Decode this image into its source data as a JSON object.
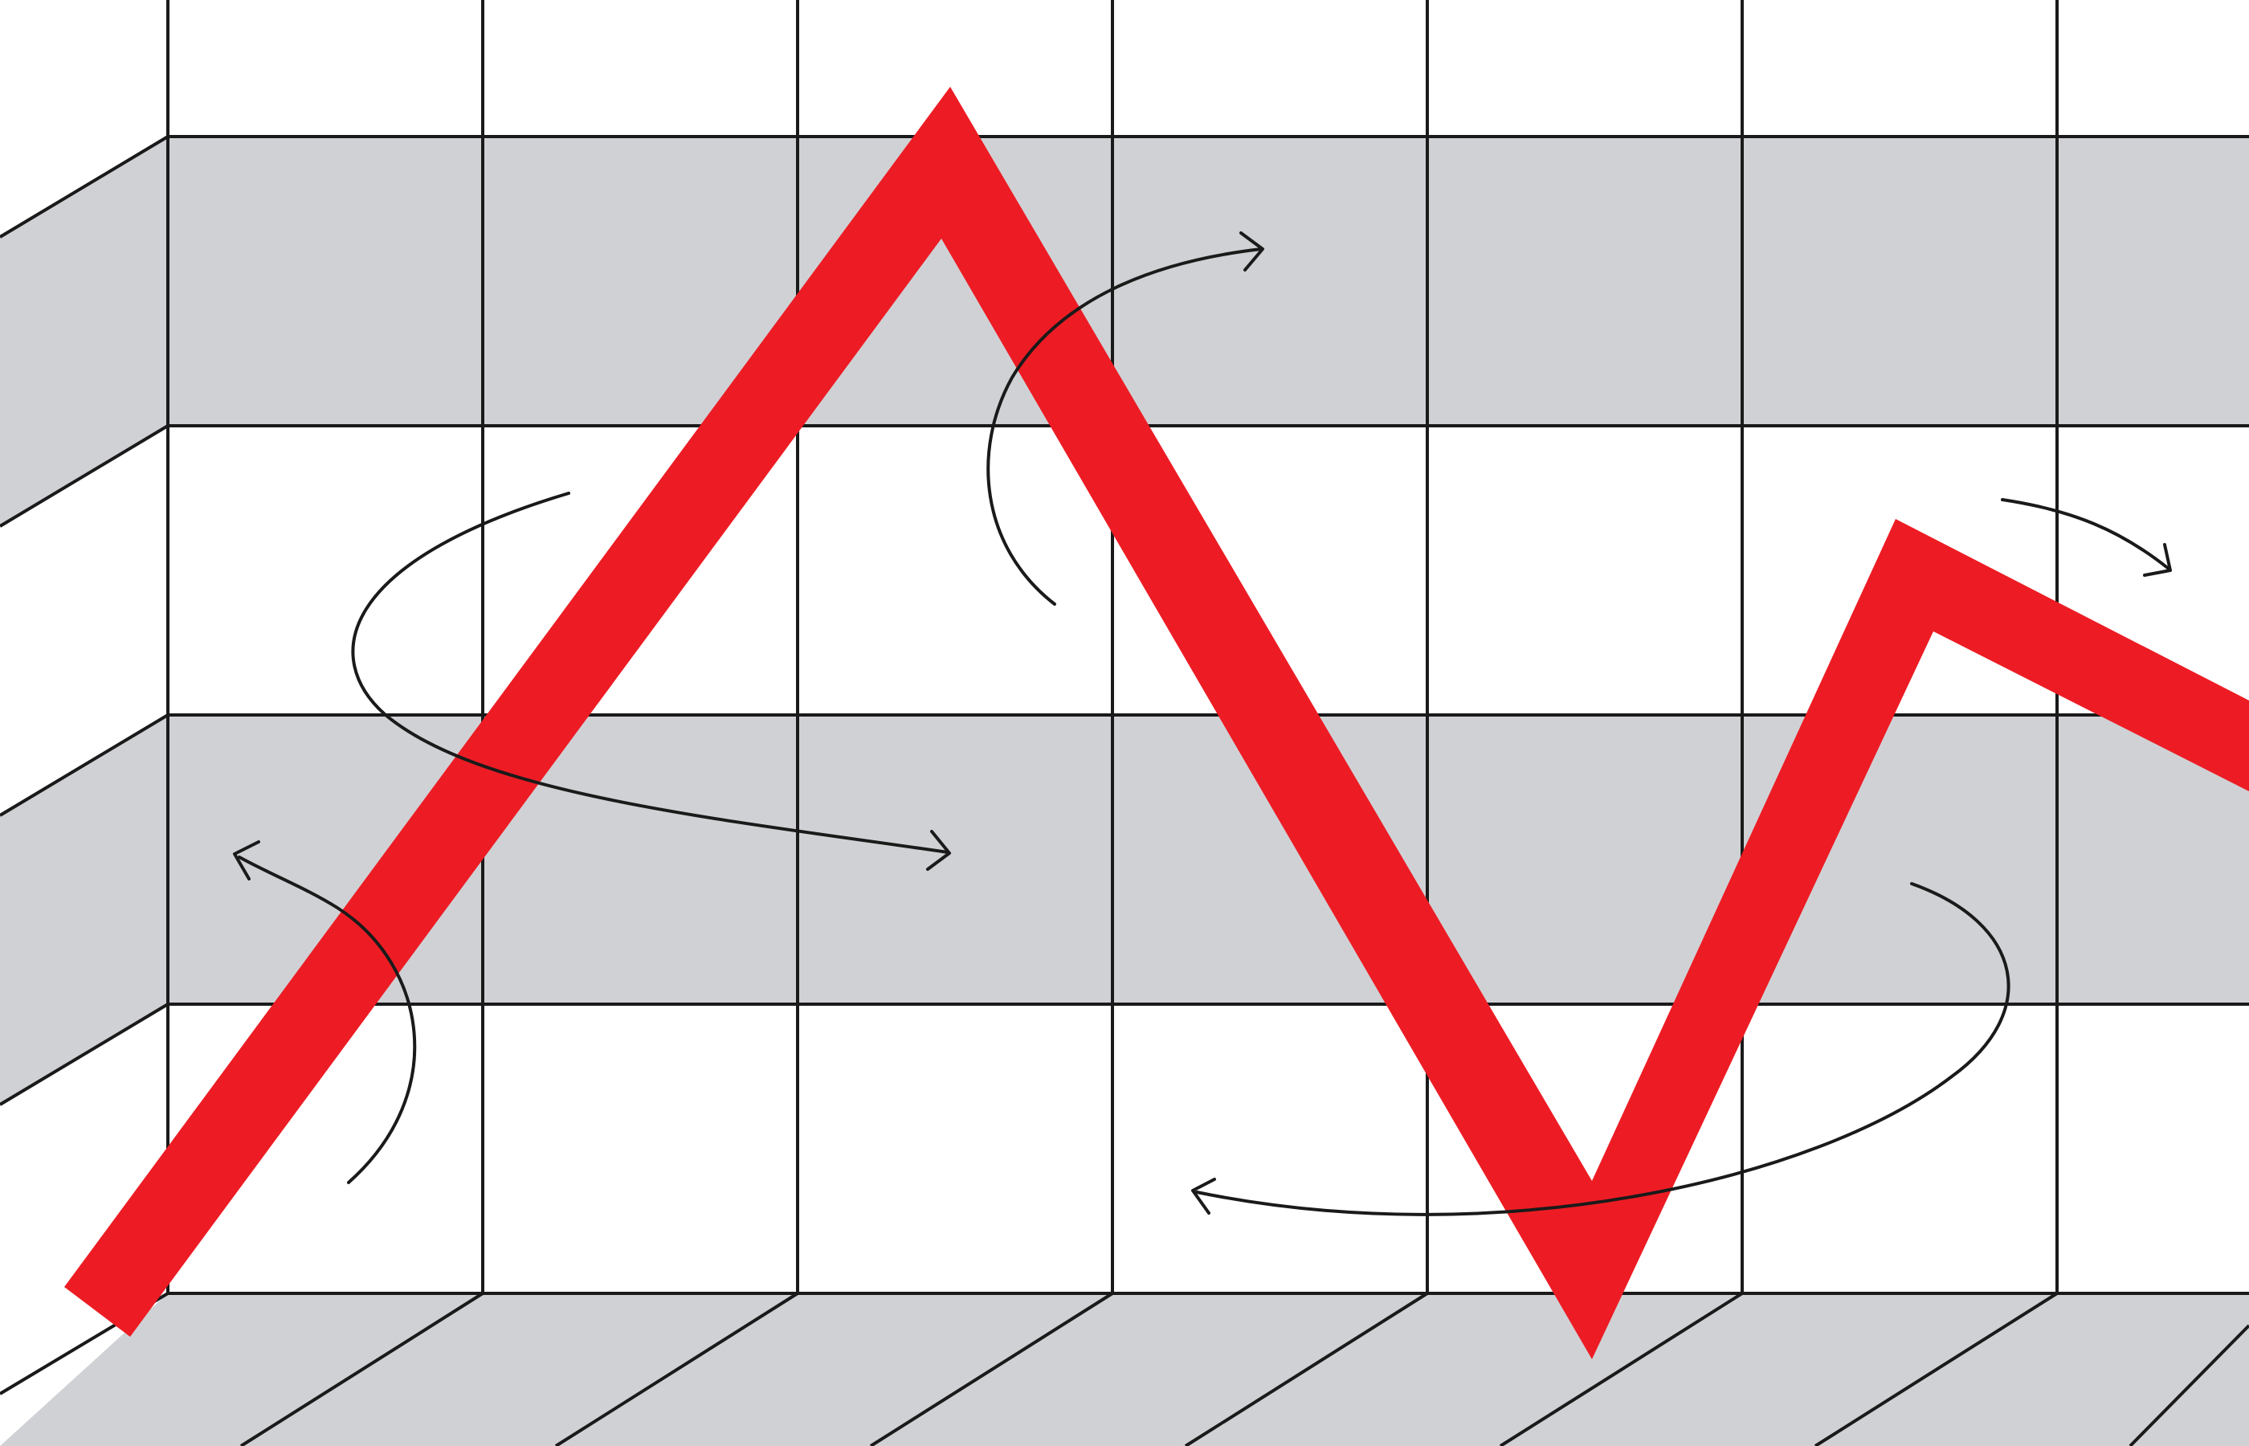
{
  "illustration": {
    "colors": {
      "background": "#ffffff",
      "band": "#d0d1d5",
      "grid_line": "#1a1a1a",
      "trend_line": "#ed1c24",
      "arrow": "#1a1a1a"
    },
    "trend_direction": "rising-falling-rising-falling",
    "icons": [
      "curved-arrow-icon",
      "curved-arrow-icon",
      "curved-arrow-icon",
      "curved-arrow-icon",
      "curved-arrow-icon"
    ]
  }
}
